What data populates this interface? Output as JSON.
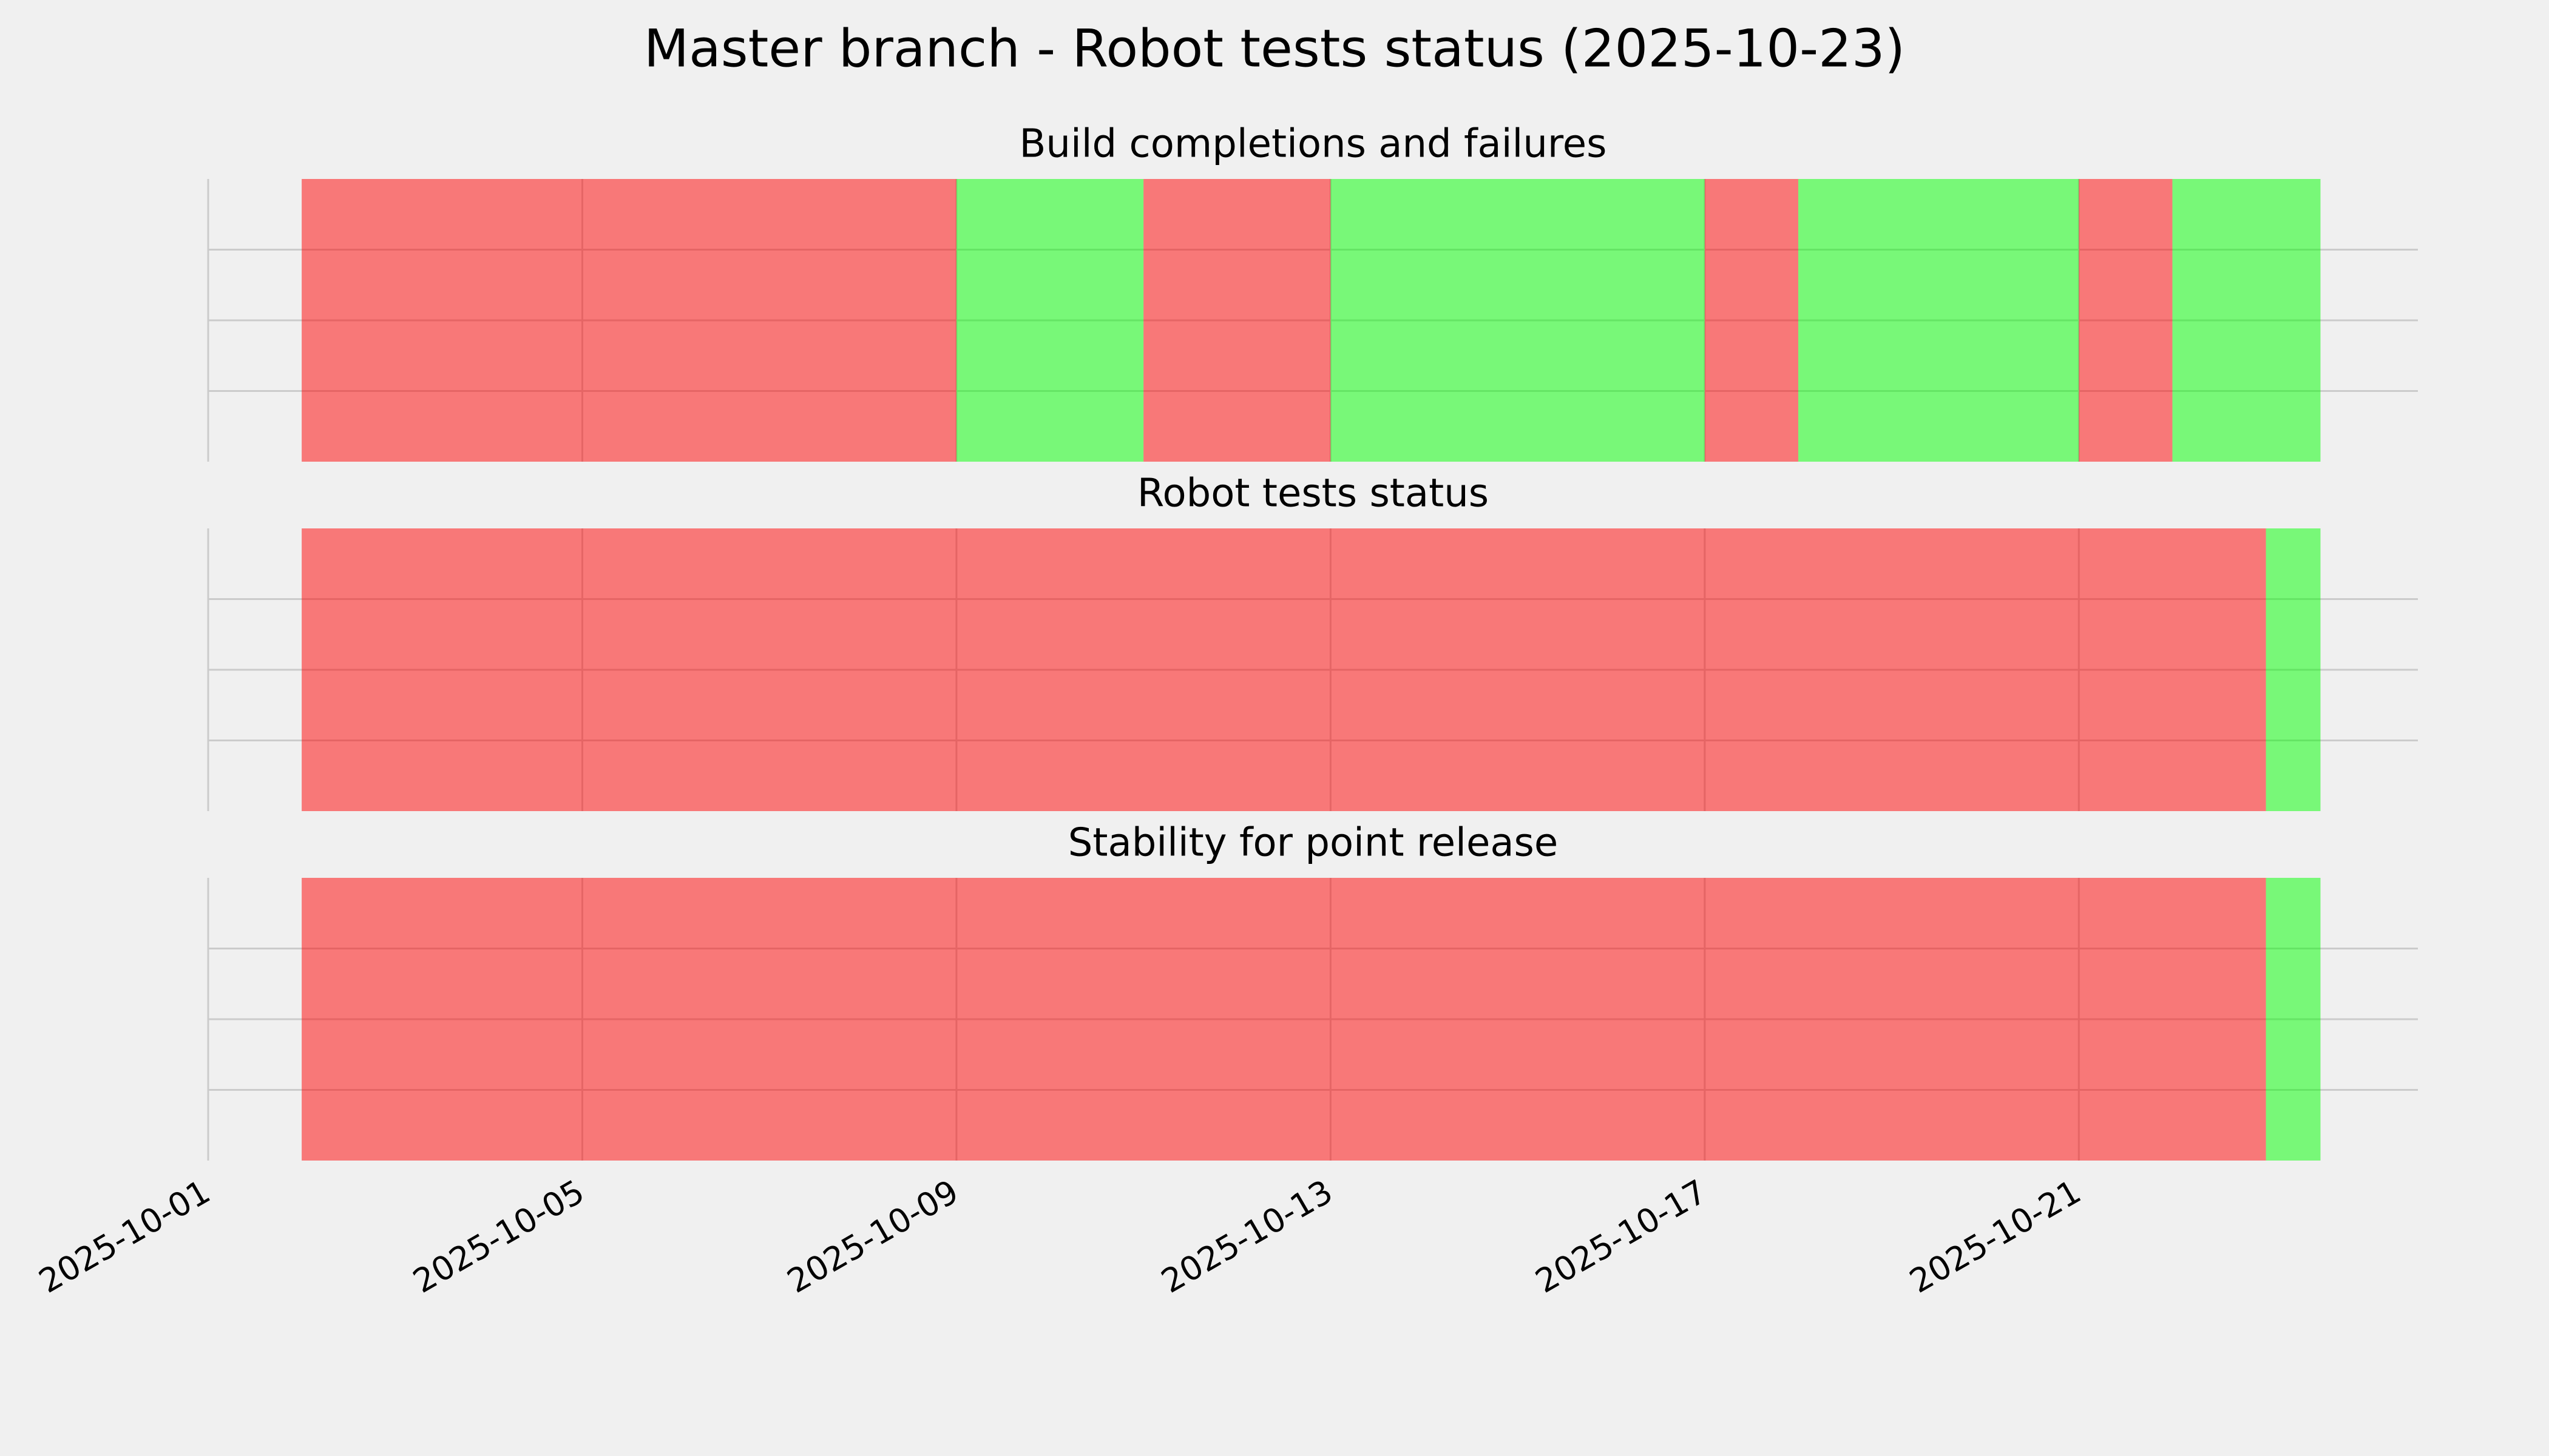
{
  "title": "Master branch - Robot tests status (2025-10-23)",
  "chart_data": [
    {
      "type": "timeline",
      "title": "Build completions and failures",
      "start": [
        "2025-10-02",
        "2025-10-09",
        "2025-10-11",
        "2025-10-13",
        "2025-10-17",
        "2025-10-18",
        "2025-10-21",
        "2025-10-22"
      ],
      "end": [
        "2025-10-09",
        "2025-10-11",
        "2025-10-13",
        "2025-10-17",
        "2025-10-18",
        "2025-10-21",
        "2025-10-22",
        "2025-10-23T14:00"
      ],
      "colors": [
        "#ff0000",
        "#00ff00",
        "#ff0000",
        "#00ff00",
        "#ff0000",
        "#00ff00",
        "#ff0000",
        "#00ff00"
      ],
      "alpha": 0.5,
      "xlim": [
        "2025-10-01",
        "2025-10-24T15:00"
      ],
      "xticks": [
        "2025-10-01",
        "2025-10-05",
        "2025-10-09",
        "2025-10-13",
        "2025-10-17",
        "2025-10-21"
      ],
      "ylim": [
        0,
        1
      ],
      "yticks": [
        0.25,
        0.5,
        0.75
      ],
      "grid": true
    },
    {
      "type": "timeline",
      "title": "Robot tests status",
      "start": [
        "2025-10-02",
        "2025-10-23"
      ],
      "end": [
        "2025-10-23",
        "2025-10-23T14:00"
      ],
      "colors": [
        "#ff0000",
        "#00ff00"
      ],
      "alpha": 0.5,
      "xlim": [
        "2025-10-01",
        "2025-10-24T15:00"
      ],
      "xticks": [
        "2025-10-01",
        "2025-10-05",
        "2025-10-09",
        "2025-10-13",
        "2025-10-17",
        "2025-10-21"
      ],
      "ylim": [
        0,
        1
      ],
      "yticks": [
        0.25,
        0.5,
        0.75
      ],
      "grid": true
    },
    {
      "type": "timeline",
      "title": "Stability for point release",
      "start": [
        "2025-10-02",
        "2025-10-23"
      ],
      "end": [
        "2025-10-23",
        "2025-10-23T14:00"
      ],
      "colors": [
        "#ff0000",
        "#00ff00"
      ],
      "alpha": 0.5,
      "xlim": [
        "2025-10-01",
        "2025-10-24T15:00"
      ],
      "xticks": [
        "2025-10-01",
        "2025-10-05",
        "2025-10-09",
        "2025-10-13",
        "2025-10-17",
        "2025-10-21"
      ],
      "ylim": [
        0,
        1
      ],
      "yticks": [
        0.25,
        0.5,
        0.75
      ],
      "grid": true,
      "show_xtick_labels": true
    }
  ]
}
